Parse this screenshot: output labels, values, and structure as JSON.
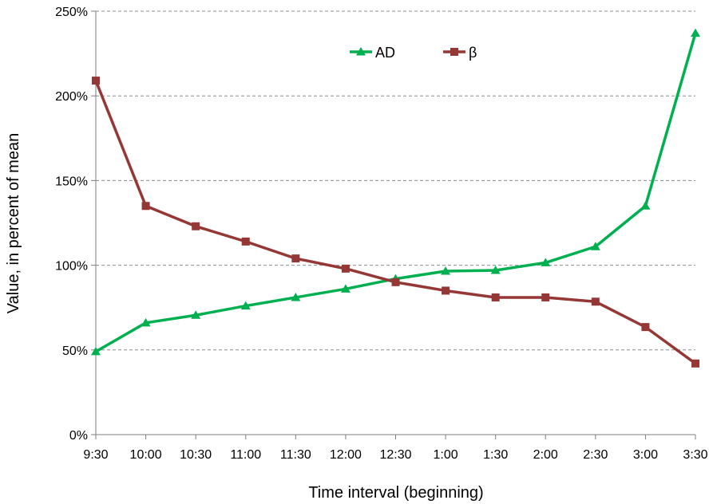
{
  "chart_data": {
    "type": "line",
    "title": "",
    "xlabel": "Time interval (beginning)",
    "ylabel": "Value, in percent of mean",
    "categories": [
      "9:30",
      "10:00",
      "10:30",
      "11:00",
      "11:30",
      "12:00",
      "12:30",
      "1:00",
      "1:30",
      "2:00",
      "2:30",
      "3:00",
      "3:30"
    ],
    "ylim": [
      0,
      250
    ],
    "yticks": [
      0,
      50,
      100,
      150,
      200,
      250
    ],
    "ytick_labels": [
      "0%",
      "50%",
      "100%",
      "150%",
      "200%",
      "250%"
    ],
    "grid": "horizontal-dashed",
    "legend_position": "top-center",
    "series": [
      {
        "name": "AD",
        "color": "#00b050",
        "marker": "triangle",
        "values": [
          49,
          66,
          70.5,
          76,
          81,
          86,
          92,
          96.5,
          97,
          101.5,
          111,
          135,
          237
        ]
      },
      {
        "name": "β",
        "color": "#953735",
        "marker": "square",
        "values": [
          209,
          135,
          123,
          114,
          104,
          98,
          90,
          85,
          81,
          81,
          78.5,
          63.5,
          42
        ]
      }
    ]
  }
}
